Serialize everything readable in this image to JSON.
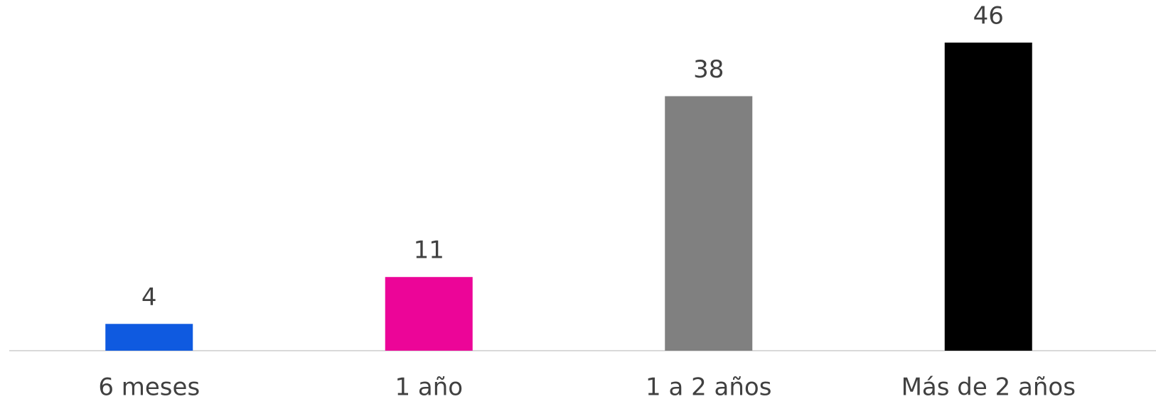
{
  "chart_data": {
    "type": "bar",
    "categories": [
      "6 meses",
      "1 año",
      "1 a 2 años",
      "Más de 2 años"
    ],
    "values": [
      4,
      11,
      38,
      46
    ],
    "colors": [
      "#0f5ae0",
      "#ec0598",
      "#808080",
      "#000000"
    ]
  }
}
